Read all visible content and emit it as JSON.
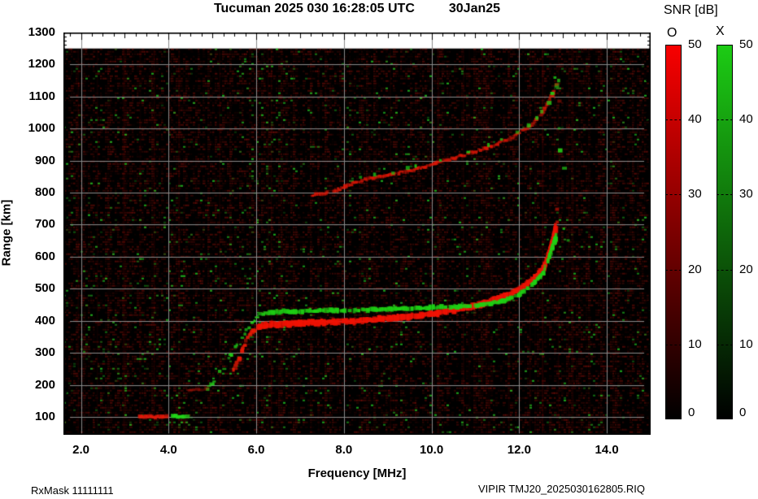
{
  "title": {
    "main": "Tucuman 2025 030 16:28:05 UTC",
    "date": "30Jan25"
  },
  "footer": {
    "left": "RxMask 11111111",
    "right": "VIPIR  TMJ20_2025030162805.RIQ"
  },
  "colorbar": {
    "title": "SNR [dB]",
    "o_label": "O",
    "x_label": "X",
    "min": 0,
    "max": 50,
    "ticks": [
      50,
      40,
      30,
      20,
      10,
      0
    ],
    "o_color_top": "#f80000",
    "x_color_top": "#1ccc14",
    "bottom_color": "#000000"
  },
  "chart_data": {
    "type": "heatmap",
    "title": "Tucuman ionogram, 2025 day 030 16:28:05 UTC",
    "xlabel": "Frequency [MHz]",
    "ylabel": "Range [km]",
    "xlim": [
      1.6,
      15.0
    ],
    "ylim": [
      44,
      1300
    ],
    "x_tick_values": [
      2.0,
      4.0,
      6.0,
      8.0,
      10.0,
      12.0,
      14.0
    ],
    "x_tick_labels": [
      "2.0",
      "4.0",
      "6.0",
      "8.0",
      "10.0",
      "12.0",
      "14.0"
    ],
    "y_tick_values": [
      1300,
      1200,
      1100,
      1000,
      900,
      800,
      700,
      600,
      500,
      400,
      300,
      200,
      100
    ],
    "grid": true,
    "grid_color": "#8a8a8a",
    "background": "#000000",
    "data_top_km": 1250,
    "noise": {
      "seed": 1337,
      "red_density": 0.5,
      "green_density": 0.03,
      "stripe_columns": 26
    },
    "traces": [
      {
        "name": "F2-onset-O",
        "mode": "line",
        "color": "235,25,5",
        "thick": 4,
        "jitter": 2,
        "density": 0.85,
        "alpha_min": 0.45,
        "alpha_max": 0.9,
        "points": [
          [
            5.45,
            250
          ],
          [
            5.6,
            295
          ],
          [
            5.72,
            335
          ],
          [
            5.85,
            362
          ],
          [
            6.0,
            380
          ]
        ]
      },
      {
        "name": "F2-main-O",
        "mode": "line",
        "color": "240,18,4",
        "thick": 7,
        "jitter": 1,
        "density": 1,
        "alpha_min": 0.7,
        "alpha_max": 1,
        "points": [
          [
            6.0,
            382
          ],
          [
            6.4,
            389
          ],
          [
            7.2,
            394
          ],
          [
            8.2,
            399
          ],
          [
            9.2,
            410
          ],
          [
            10.0,
            422
          ],
          [
            10.6,
            436
          ],
          [
            11.1,
            452
          ],
          [
            11.55,
            472
          ],
          [
            11.95,
            498
          ],
          [
            12.25,
            526
          ],
          [
            12.5,
            562
          ],
          [
            12.62,
            602
          ],
          [
            12.72,
            648
          ],
          [
            12.8,
            700
          ]
        ]
      },
      {
        "name": "F2-onset-X",
        "mode": "line",
        "color": "35,210,25",
        "thick": 3,
        "jitter": 3,
        "density": 0.45,
        "alpha_min": 0.5,
        "alpha_max": 0.95,
        "points": [
          [
            4.85,
            185
          ],
          [
            5.05,
            222
          ],
          [
            5.3,
            272
          ],
          [
            5.55,
            330
          ],
          [
            5.8,
            385
          ],
          [
            6.0,
            415
          ]
        ]
      },
      {
        "name": "F2-main-X",
        "mode": "line",
        "color": "30,208,20",
        "thick": 5,
        "jitter": 1,
        "density": 0.85,
        "alpha_min": 0.6,
        "alpha_max": 1,
        "points": [
          [
            6.05,
            420
          ],
          [
            6.4,
            428
          ],
          [
            7.2,
            431
          ],
          [
            8.2,
            433
          ],
          [
            9.2,
            438
          ],
          [
            10.0,
            442
          ],
          [
            10.6,
            445
          ],
          [
            11.1,
            449
          ],
          [
            11.55,
            460
          ],
          [
            11.95,
            482
          ],
          [
            12.25,
            510
          ],
          [
            12.5,
            546
          ],
          [
            12.62,
            586
          ],
          [
            12.72,
            632
          ],
          [
            12.82,
            672
          ]
        ]
      },
      {
        "name": "second-hop-O",
        "mode": "line",
        "color": "225,22,6",
        "thick": 3.5,
        "jitter": 1.5,
        "density": 0.9,
        "alpha_min": 0.4,
        "alpha_max": 0.85,
        "points": [
          [
            7.25,
            793
          ],
          [
            7.7,
            803
          ],
          [
            8.3,
            835
          ],
          [
            9.0,
            855
          ],
          [
            9.8,
            880
          ],
          [
            10.5,
            910
          ],
          [
            11.3,
            943
          ],
          [
            11.8,
            973
          ],
          [
            12.2,
            1007
          ],
          [
            12.45,
            1040
          ],
          [
            12.6,
            1075
          ],
          [
            12.72,
            1110
          ],
          [
            12.78,
            1125
          ]
        ]
      },
      {
        "name": "second-hop-X",
        "mode": "blobs",
        "color": "30,205,22",
        "thick": 4,
        "jitter": 2,
        "density": 0.95,
        "alpha_min": 0.55,
        "alpha_max": 0.95,
        "points": [
          [
            8.35,
            848
          ],
          [
            8.65,
            853
          ],
          [
            9.1,
            863
          ],
          [
            9.4,
            873
          ],
          [
            9.6,
            880
          ],
          [
            10.15,
            897
          ],
          [
            10.8,
            924
          ],
          [
            11.25,
            947
          ],
          [
            11.55,
            963
          ],
          [
            11.9,
            987
          ],
          [
            12.15,
            1012
          ],
          [
            12.35,
            1035
          ],
          [
            12.5,
            1058
          ],
          [
            12.63,
            1085
          ],
          [
            12.73,
            1108
          ],
          [
            12.82,
            1132
          ],
          [
            12.88,
            1152
          ]
        ]
      },
      {
        "name": "E-streak-red-100km",
        "mode": "line",
        "color": "230,25,10",
        "thick": 4,
        "jitter": 1,
        "density": 0.95,
        "alpha_min": 0.45,
        "alpha_max": 0.85,
        "points": [
          [
            3.3,
            100
          ],
          [
            3.95,
            100
          ]
        ]
      },
      {
        "name": "E-streak-green-100km",
        "mode": "line",
        "color": "35,215,25",
        "thick": 4,
        "jitter": 1,
        "density": 0.95,
        "alpha_min": 0.6,
        "alpha_max": 1,
        "points": [
          [
            4.05,
            101
          ],
          [
            4.42,
            101
          ]
        ]
      },
      {
        "name": "smear-red-180km",
        "mode": "line",
        "color": "200,25,10",
        "thick": 3,
        "jitter": 1,
        "density": 0.8,
        "alpha_min": 0.15,
        "alpha_max": 0.4,
        "points": [
          [
            4.4,
            182
          ],
          [
            4.85,
            188
          ]
        ]
      },
      {
        "name": "cusp-scatter-green",
        "mode": "blobs",
        "color": "35,215,25",
        "thick": 4,
        "jitter": 2,
        "density": 1,
        "alpha_min": 0.5,
        "alpha_max": 0.9,
        "points": [
          [
            12.77,
            1162
          ],
          [
            12.9,
            1005
          ],
          [
            12.88,
            930
          ],
          [
            12.97,
            872
          ],
          [
            13.0,
            690
          ],
          [
            13.06,
            652
          ]
        ]
      },
      {
        "name": "cusp-scatter-red",
        "mode": "blobs",
        "color": "225,22,6",
        "thick": 4,
        "jitter": 2,
        "density": 1,
        "alpha_min": 0.35,
        "alpha_max": 0.7,
        "points": [
          [
            12.83,
            1140
          ],
          [
            12.86,
            1085
          ],
          [
            12.8,
            745
          ],
          [
            12.85,
            710
          ]
        ]
      }
    ]
  }
}
